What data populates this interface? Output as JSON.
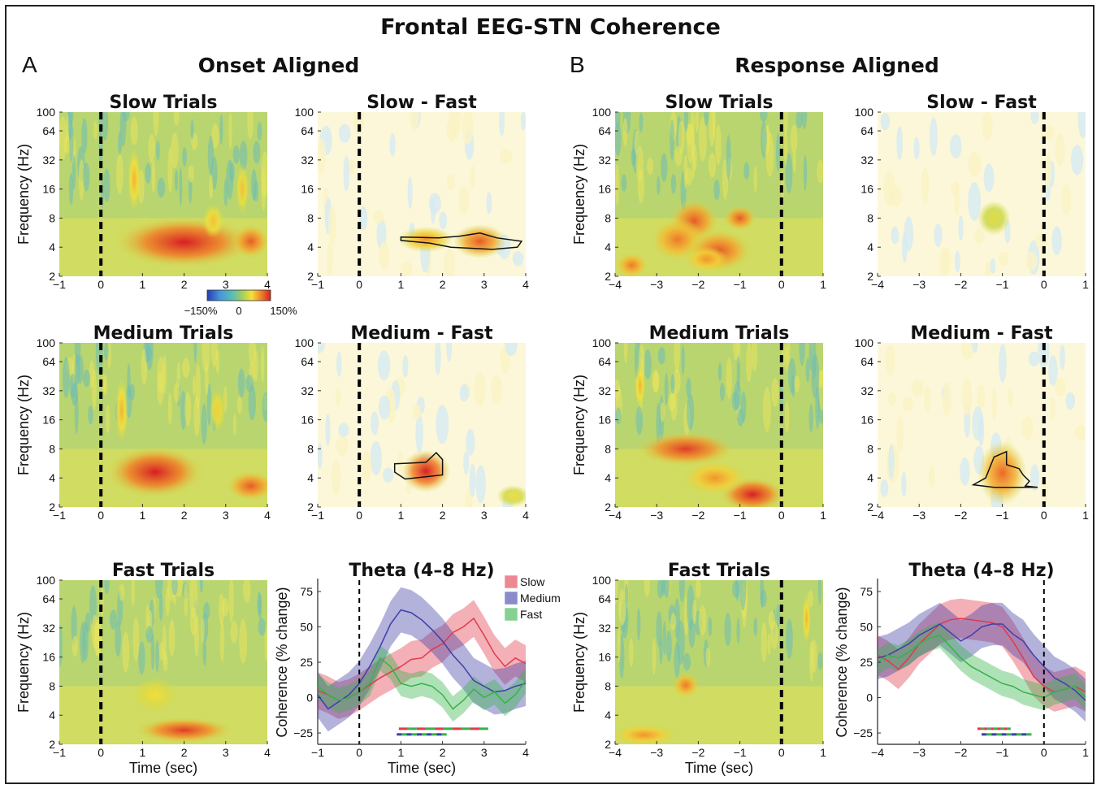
{
  "figure": {
    "title": "Frontal EEG-STN Coherence",
    "section_a_letter": "A",
    "section_a_title": "Onset Aligned",
    "section_b_letter": "B",
    "section_b_title": "Response Aligned"
  },
  "colorbar": {
    "min_label": "−150%",
    "mid_label": "0",
    "max_label": "150%"
  },
  "colors": {
    "slow": "#e23a4b",
    "medium": "#3f3fa6",
    "fast": "#36b34a"
  },
  "chart_data": [
    {
      "type": "heatmap",
      "section": "A",
      "title": "Slow Trials",
      "ylabel": "Frequency (Hz)",
      "xlabel": "",
      "x_ticks": [
        "−1",
        "0",
        "1",
        "2",
        "3",
        "4"
      ],
      "y_ticks": [
        "2",
        "4",
        "8",
        "16",
        "32",
        "64",
        "100"
      ],
      "xlim": [
        -1,
        4
      ],
      "ylim": [
        2,
        100
      ],
      "y_scale": "log",
      "event_line_x": 0,
      "colorbar": true,
      "blobs": [
        {
          "x": 2.0,
          "f": 4.5,
          "rx": 1.3,
          "ry": 0.12,
          "v": 1.0
        },
        {
          "x": 3.6,
          "f": 4.6,
          "rx": 0.35,
          "ry": 0.08,
          "v": 0.8
        },
        {
          "x": 0.8,
          "f": 20,
          "rx": 0.12,
          "ry": 0.15,
          "v": 0.5
        },
        {
          "x": 3.4,
          "f": 16,
          "rx": 0.12,
          "ry": 0.12,
          "v": 0.45
        },
        {
          "x": 2.7,
          "f": 7.5,
          "rx": 0.2,
          "ry": 0.08,
          "v": 0.45
        }
      ]
    },
    {
      "type": "heatmap",
      "section": "A",
      "title": "Slow - Fast",
      "ylabel": "",
      "xlabel": "",
      "x_ticks": [
        "−1",
        "0",
        "1",
        "2",
        "3",
        "4"
      ],
      "y_ticks": [
        "2",
        "4",
        "8",
        "16",
        "32",
        "64",
        "100"
      ],
      "xlim": [
        -1,
        4
      ],
      "ylim": [
        2,
        100
      ],
      "y_scale": "log",
      "event_line_x": 0,
      "contrast": true,
      "blobs": [
        {
          "x": 2.9,
          "f": 4.6,
          "rx": 0.5,
          "ry": 0.08,
          "v": 0.8
        },
        {
          "x": 1.6,
          "f": 4.8,
          "rx": 0.5,
          "ry": 0.06,
          "v": 0.6
        }
      ],
      "cluster": [
        [
          1.0,
          5.1
        ],
        [
          1.9,
          5.0
        ],
        [
          2.4,
          5.2
        ],
        [
          2.9,
          5.6
        ],
        [
          3.3,
          5.0
        ],
        [
          3.9,
          4.6
        ],
        [
          3.8,
          4.0
        ],
        [
          3.2,
          3.8
        ],
        [
          2.2,
          4.0
        ],
        [
          1.7,
          4.4
        ],
        [
          1.0,
          4.7
        ]
      ]
    },
    {
      "type": "heatmap",
      "section": "B",
      "title": "Slow Trials",
      "ylabel": "Frequency (Hz)",
      "xlabel": "",
      "x_ticks": [
        "−4",
        "−3",
        "−2",
        "−1",
        "0",
        "1"
      ],
      "y_ticks": [
        "2",
        "4",
        "8",
        "16",
        "32",
        "64",
        "100"
      ],
      "xlim": [
        -4,
        1
      ],
      "ylim": [
        2,
        100
      ],
      "y_scale": "log",
      "event_line_x": 0,
      "blobs": [
        {
          "x": -2.1,
          "f": 7.5,
          "rx": 0.45,
          "ry": 0.1,
          "v": 0.8
        },
        {
          "x": -1.0,
          "f": 8.0,
          "rx": 0.3,
          "ry": 0.06,
          "v": 0.8
        },
        {
          "x": -2.5,
          "f": 4.8,
          "rx": 0.5,
          "ry": 0.1,
          "v": 0.7
        },
        {
          "x": -1.5,
          "f": 3.7,
          "rx": 0.6,
          "ry": 0.1,
          "v": 0.8
        },
        {
          "x": -3.6,
          "f": 2.6,
          "rx": 0.3,
          "ry": 0.06,
          "v": 0.7
        },
        {
          "x": -1.8,
          "f": 3.0,
          "rx": 0.4,
          "ry": 0.06,
          "v": 0.6
        }
      ]
    },
    {
      "type": "heatmap",
      "section": "B",
      "title": "Slow - Fast",
      "ylabel": "",
      "xlabel": "",
      "x_ticks": [
        "−4",
        "−3",
        "−2",
        "−1",
        "0",
        "1"
      ],
      "y_ticks": [
        "2",
        "4",
        "8",
        "16",
        "32",
        "64",
        "100"
      ],
      "xlim": [
        -4,
        1
      ],
      "ylim": [
        2,
        100
      ],
      "y_scale": "log",
      "event_line_x": 0,
      "contrast": true,
      "blobs": [
        {
          "x": -1.2,
          "f": 8.0,
          "rx": 0.3,
          "ry": 0.08,
          "v": 0.25
        }
      ]
    },
    {
      "type": "heatmap",
      "section": "A",
      "title": "Medium Trials",
      "ylabel": "Frequency (Hz)",
      "xlabel": "",
      "x_ticks": [
        "−1",
        "0",
        "1",
        "2",
        "3",
        "4"
      ],
      "y_ticks": [
        "2",
        "4",
        "8",
        "16",
        "32",
        "64",
        "100"
      ],
      "xlim": [
        -1,
        4
      ],
      "ylim": [
        2,
        100
      ],
      "y_scale": "log",
      "event_line_x": 0,
      "blobs": [
        {
          "x": 1.3,
          "f": 4.6,
          "rx": 0.9,
          "ry": 0.12,
          "v": 1.0
        },
        {
          "x": 3.6,
          "f": 3.3,
          "rx": 0.45,
          "ry": 0.07,
          "v": 0.8
        },
        {
          "x": 0.5,
          "f": 20,
          "rx": 0.12,
          "ry": 0.15,
          "v": 0.5
        },
        {
          "x": 2.8,
          "f": 20,
          "rx": 0.15,
          "ry": 0.1,
          "v": 0.4
        }
      ]
    },
    {
      "type": "heatmap",
      "section": "A",
      "title": "Medium - Fast",
      "ylabel": "",
      "xlabel": "",
      "x_ticks": [
        "−1",
        "0",
        "1",
        "2",
        "3",
        "4"
      ],
      "y_ticks": [
        "2",
        "4",
        "8",
        "16",
        "32",
        "64",
        "100"
      ],
      "xlim": [
        -1,
        4
      ],
      "ylim": [
        2,
        100
      ],
      "y_scale": "log",
      "event_line_x": 0,
      "contrast": true,
      "blobs": [
        {
          "x": 1.6,
          "f": 4.7,
          "rx": 0.45,
          "ry": 0.1,
          "v": 1.0
        },
        {
          "x": 3.7,
          "f": 2.6,
          "rx": 0.3,
          "ry": 0.05,
          "v": 0.3
        }
      ],
      "cluster": [
        [
          0.85,
          5.6
        ],
        [
          1.6,
          5.8
        ],
        [
          1.85,
          7.3
        ],
        [
          2.0,
          6.2
        ],
        [
          2.0,
          4.3
        ],
        [
          1.1,
          3.9
        ],
        [
          0.85,
          4.6
        ]
      ]
    },
    {
      "type": "heatmap",
      "section": "B",
      "title": "Medium Trials",
      "ylabel": "Frequency (Hz)",
      "xlabel": "",
      "x_ticks": [
        "−4",
        "−3",
        "−2",
        "−1",
        "0",
        "1"
      ],
      "y_ticks": [
        "2",
        "4",
        "8",
        "16",
        "32",
        "64",
        "100"
      ],
      "xlim": [
        -4,
        1
      ],
      "ylim": [
        2,
        100
      ],
      "y_scale": "log",
      "event_line_x": 0,
      "blobs": [
        {
          "x": -2.3,
          "f": 8.0,
          "rx": 0.9,
          "ry": 0.08,
          "v": 0.9
        },
        {
          "x": -0.7,
          "f": 2.7,
          "rx": 0.6,
          "ry": 0.08,
          "v": 1.0
        },
        {
          "x": -1.6,
          "f": 4.0,
          "rx": 0.6,
          "ry": 0.08,
          "v": 0.6
        },
        {
          "x": -3.4,
          "f": 36,
          "rx": 0.1,
          "ry": 0.1,
          "v": 0.5
        }
      ]
    },
    {
      "type": "heatmap",
      "section": "B",
      "title": "Medium - Fast",
      "ylabel": "",
      "xlabel": "",
      "x_ticks": [
        "−4",
        "−3",
        "−2",
        "−1",
        "0",
        "1"
      ],
      "y_ticks": [
        "2",
        "4",
        "8",
        "16",
        "32",
        "64",
        "100"
      ],
      "xlim": [
        -4,
        1
      ],
      "ylim": [
        2,
        100
      ],
      "y_scale": "log",
      "event_line_x": 0,
      "contrast": true,
      "blobs": [
        {
          "x": -1.0,
          "f": 4.5,
          "rx": 0.45,
          "ry": 0.15,
          "v": 0.75
        }
      ],
      "cluster": [
        [
          -1.7,
          3.4
        ],
        [
          -1.4,
          4.0
        ],
        [
          -1.2,
          6.6
        ],
        [
          -0.9,
          7.5
        ],
        [
          -0.9,
          5.5
        ],
        [
          -0.6,
          5.0
        ],
        [
          -0.5,
          4.3
        ],
        [
          -0.35,
          3.7
        ],
        [
          -0.45,
          3.3
        ],
        [
          -0.15,
          3.2
        ],
        [
          -1.2,
          3.2
        ]
      ]
    },
    {
      "type": "heatmap",
      "section": "A",
      "title": "Fast Trials",
      "ylabel": "Frequency (Hz)",
      "xlabel": "Time (sec)",
      "x_ticks": [
        "−1",
        "0",
        "1",
        "2",
        "3",
        "4"
      ],
      "y_ticks": [
        "2",
        "4",
        "8",
        "16",
        "32",
        "64",
        "100"
      ],
      "xlim": [
        -1,
        4
      ],
      "ylim": [
        2,
        100
      ],
      "y_scale": "log",
      "event_line_x": 0,
      "blobs": [
        {
          "x": 2.0,
          "f": 2.8,
          "rx": 0.9,
          "ry": 0.06,
          "v": 0.9
        },
        {
          "x": 1.3,
          "f": 6.5,
          "rx": 0.4,
          "ry": 0.08,
          "v": 0.35
        }
      ]
    },
    {
      "type": "line",
      "section": "A",
      "title": "Theta (4–8 Hz)",
      "ylabel": "Coherence (% change)",
      "xlabel": "Time (sec)",
      "x_ticks": [
        "−1",
        "0",
        "1",
        "2",
        "3",
        "4"
      ],
      "y_ticks": [
        "−25",
        "0",
        "25",
        "50",
        "75"
      ],
      "xlim": [
        -1,
        4
      ],
      "ylim": [
        -33,
        83
      ],
      "event_line_x": 0,
      "legend": [
        "Slow",
        "Medium",
        "Fast"
      ],
      "legend_position": "top-right",
      "x": [
        -1,
        -0.75,
        -0.5,
        -0.25,
        0,
        0.25,
        0.5,
        0.75,
        1,
        1.25,
        1.5,
        1.75,
        2,
        2.25,
        2.5,
        2.75,
        3,
        3.25,
        3.5,
        3.75,
        4
      ],
      "series": [
        {
          "name": "Slow",
          "color": "slow",
          "band": 13,
          "values": [
            5,
            2,
            -2,
            0,
            4,
            9,
            14,
            18,
            22,
            27,
            28,
            34,
            38,
            46,
            50,
            56,
            44,
            31,
            22,
            28,
            24
          ]
        },
        {
          "name": "Medium",
          "color": "medium",
          "band": 16,
          "values": [
            2,
            -8,
            -3,
            2,
            10,
            22,
            36,
            52,
            62,
            60,
            55,
            48,
            40,
            30,
            22,
            12,
            8,
            4,
            5,
            8,
            10
          ]
        },
        {
          "name": "Fast",
          "color": "fast",
          "band": 9,
          "values": [
            8,
            2,
            -2,
            0,
            4,
            10,
            28,
            22,
            10,
            8,
            10,
            8,
            2,
            -8,
            -2,
            6,
            0,
            4,
            -4,
            2,
            12
          ]
        }
      ],
      "significance_bars": [
        {
          "y": -22,
          "x_start": 0.95,
          "x_end": 3.1,
          "colors": [
            "slow",
            "fast"
          ]
        },
        {
          "y": -26,
          "x_start": 0.9,
          "x_end": 2.1,
          "colors": [
            "medium",
            "fast"
          ]
        }
      ]
    },
    {
      "type": "heatmap",
      "section": "B",
      "title": "Fast Trials",
      "ylabel": "Frequency (Hz)",
      "xlabel": "Time (sec)",
      "x_ticks": [
        "−4",
        "−3",
        "−2",
        "−1",
        "0",
        "1"
      ],
      "y_ticks": [
        "2",
        "4",
        "8",
        "16",
        "32",
        "64",
        "100"
      ],
      "xlim": [
        -4,
        1
      ],
      "ylim": [
        2,
        100
      ],
      "y_scale": "log",
      "event_line_x": 0,
      "blobs": [
        {
          "x": -2.3,
          "f": 8.2,
          "rx": 0.25,
          "ry": 0.06,
          "v": 0.7
        },
        {
          "x": -3.3,
          "f": 2.5,
          "rx": 0.6,
          "ry": 0.05,
          "v": 0.6
        },
        {
          "x": 0.6,
          "f": 40,
          "rx": 0.08,
          "ry": 0.12,
          "v": 0.5
        }
      ]
    },
    {
      "type": "line",
      "section": "B",
      "title": "Theta (4–8 Hz)",
      "ylabel": "Coherence (% change)",
      "xlabel": "",
      "x_ticks": [
        "−4",
        "−3",
        "−2",
        "−1",
        "0",
        "1"
      ],
      "y_ticks": [
        "−25",
        "0",
        "25",
        "50",
        "75"
      ],
      "xlim": [
        -4,
        1
      ],
      "ylim": [
        -33,
        83
      ],
      "event_line_x": 0,
      "x": [
        -4,
        -3.75,
        -3.5,
        -3.25,
        -3,
        -2.75,
        -2.5,
        -2.25,
        -2,
        -1.75,
        -1.5,
        -1.25,
        -1,
        -0.75,
        -0.5,
        -0.25,
        0,
        0.25,
        0.5,
        0.75,
        1
      ],
      "series": [
        {
          "name": "Slow",
          "color": "slow",
          "band": 14,
          "values": [
            30,
            26,
            20,
            28,
            38,
            45,
            52,
            55,
            56,
            55,
            54,
            53,
            50,
            40,
            28,
            15,
            8,
            4,
            6,
            8,
            4
          ]
        },
        {
          "name": "Medium",
          "color": "medium",
          "band": 15,
          "values": [
            28,
            30,
            34,
            38,
            44,
            48,
            52,
            46,
            40,
            44,
            50,
            52,
            52,
            45,
            40,
            30,
            22,
            14,
            10,
            5,
            -2
          ]
        },
        {
          "name": "Fast",
          "color": "fast",
          "band": 9,
          "values": [
            25,
            30,
            28,
            32,
            38,
            42,
            44,
            36,
            28,
            22,
            18,
            14,
            10,
            8,
            4,
            2,
            0,
            4,
            6,
            8,
            0
          ]
        }
      ],
      "significance_bars": [
        {
          "y": -22,
          "x_start": -1.6,
          "x_end": -0.8,
          "colors": [
            "slow",
            "fast"
          ]
        },
        {
          "y": -26,
          "x_start": -1.5,
          "x_end": -0.3,
          "colors": [
            "medium",
            "fast"
          ]
        }
      ]
    }
  ]
}
